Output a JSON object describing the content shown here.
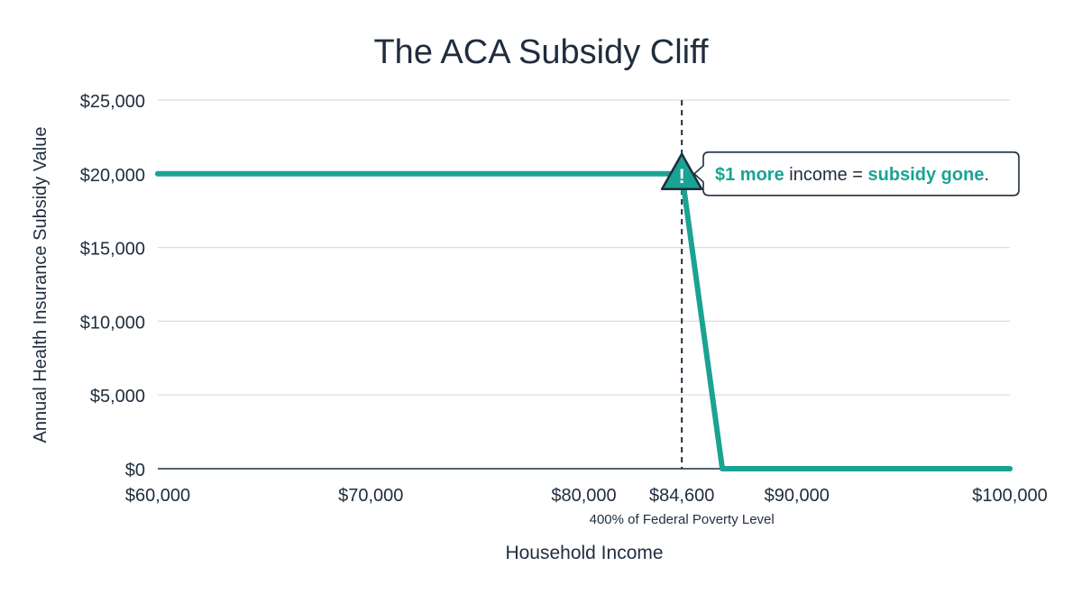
{
  "chart_data": {
    "type": "line",
    "title": "The ACA Subsidy Cliff",
    "xlabel": "Household Income",
    "ylabel": "Annual Health Insurance Subsidy Value",
    "xlim": [
      60000,
      100000
    ],
    "ylim": [
      0,
      25000
    ],
    "grid": true,
    "legend": "none",
    "x_ticks": [
      {
        "value": 60000,
        "label": "$60,000"
      },
      {
        "value": 70000,
        "label": "$70,000"
      },
      {
        "value": 80000,
        "label": "$80,000"
      },
      {
        "value": 84600,
        "label": "$84,600"
      },
      {
        "value": 90000,
        "label": "$90,000"
      },
      {
        "value": 100000,
        "label": "$100,000"
      }
    ],
    "y_ticks": [
      {
        "value": 0,
        "label": "$0"
      },
      {
        "value": 5000,
        "label": "$5,000"
      },
      {
        "value": 10000,
        "label": "$10,000"
      },
      {
        "value": 15000,
        "label": "$15,000"
      },
      {
        "value": 20000,
        "label": "$20,000"
      },
      {
        "value": 25000,
        "label": "$25,000"
      }
    ],
    "series": [
      {
        "color": "#1aa393",
        "points": [
          {
            "x": 60000,
            "y": 20000
          },
          {
            "x": 84600,
            "y": 20000
          },
          {
            "x": 86500,
            "y": 0
          },
          {
            "x": 100000,
            "y": 0
          }
        ]
      }
    ],
    "reference_line": {
      "x": 84600,
      "label": "400% of Federal Poverty Level",
      "style": "dashed"
    },
    "annotation": {
      "x": 84600,
      "y": 20000,
      "icon": "warning-triangle-icon",
      "icon_glyph": "!",
      "parts": [
        {
          "text": "$1 more",
          "emphasis": true
        },
        {
          "text": " income = ",
          "emphasis": false
        },
        {
          "text": "subsidy gone",
          "emphasis": true
        },
        {
          "text": ".",
          "emphasis": false
        }
      ]
    },
    "colors": {
      "accent": "#1aa393",
      "text": "#1f2d3d",
      "grid": "#d9dde2",
      "axis": "#1f2d3d"
    }
  }
}
